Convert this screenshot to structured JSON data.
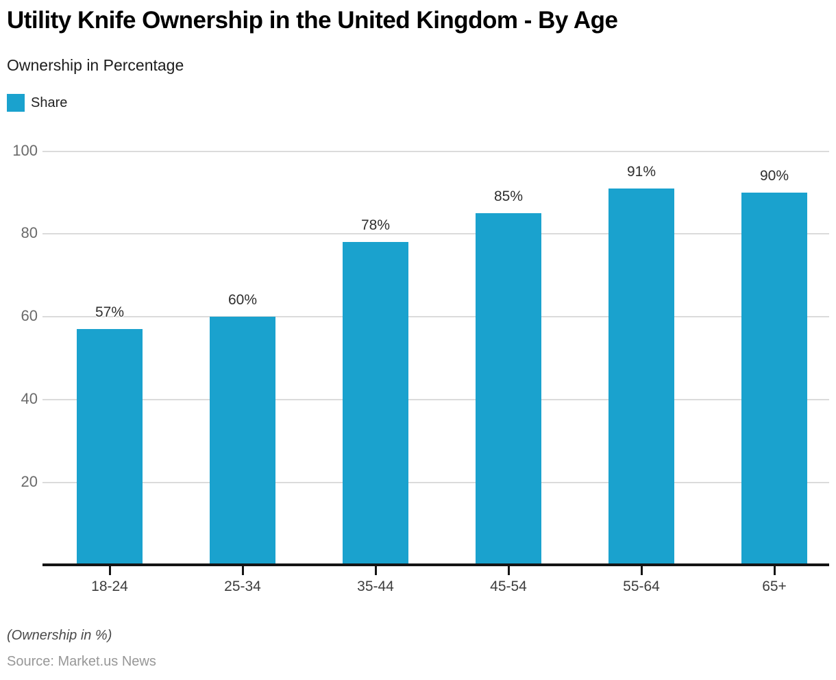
{
  "header": {
    "title": "Utility Knife Ownership in the United Kingdom - By Age",
    "subtitle": "Ownership in Percentage"
  },
  "legend": {
    "items": [
      {
        "label": "Share",
        "color": "#1AA2CE"
      }
    ]
  },
  "chart_data": {
    "type": "bar",
    "title": "Utility Knife Ownership in the United Kingdom - By Age",
    "subtitle": "Ownership in Percentage",
    "categories": [
      "18-24",
      "25-34",
      "35-44",
      "45-54",
      "55-64",
      "65+"
    ],
    "series": [
      {
        "name": "Share",
        "values": [
          57,
          60,
          78,
          85,
          91,
          90
        ]
      }
    ],
    "value_labels": [
      "57%",
      "60%",
      "78%",
      "85%",
      "91%",
      "90%"
    ],
    "xlabel": "",
    "ylabel": "",
    "ylim": [
      0,
      100
    ],
    "yticks": [
      20,
      40,
      60,
      80,
      100
    ],
    "grid": true,
    "legend_position": "top-left",
    "bar_color": "#1AA2CE",
    "note": "(Ownership in %)"
  },
  "footer": {
    "note": "(Ownership in %)",
    "source": "Source: Market.us News"
  }
}
